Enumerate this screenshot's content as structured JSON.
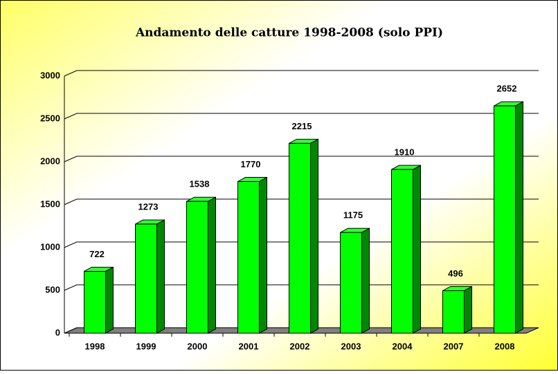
{
  "chart_data": {
    "type": "bar3d",
    "title": "Andamento delle catture 1998-2008 (solo PPI)",
    "categories": [
      "1998",
      "1999",
      "2000",
      "2001",
      "2002",
      "2003",
      "2004",
      "2007",
      "2008"
    ],
    "values": [
      722,
      1273,
      1538,
      1770,
      2215,
      1175,
      1910,
      496,
      2652
    ],
    "color": "#00ff00",
    "ylim": [
      0,
      3000
    ],
    "yticks": [
      0,
      500,
      1000,
      1500,
      2000,
      2500,
      3000
    ],
    "grid": true
  }
}
